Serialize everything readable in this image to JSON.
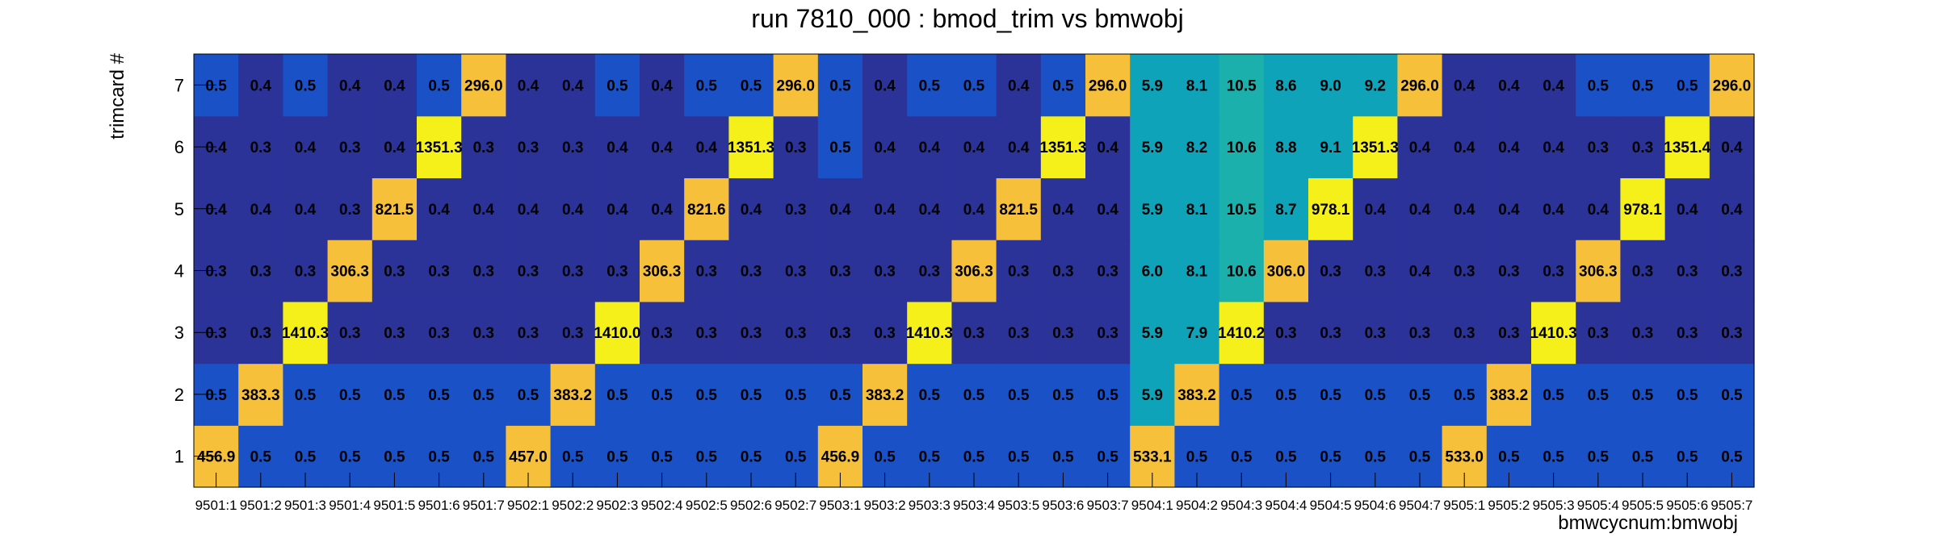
{
  "chart_data": {
    "type": "heatmap",
    "title": "run 7810_000 : bmod_trim vs bmwobj",
    "xlabel": "bmwcycnum:bmwobj",
    "ylabel": "trimcard #",
    "x_categories": [
      "9501:1",
      "9501:2",
      "9501:3",
      "9501:4",
      "9501:5",
      "9501:6",
      "9501:7",
      "9502:1",
      "9502:2",
      "9502:3",
      "9502:4",
      "9502:5",
      "9502:6",
      "9502:7",
      "9503:1",
      "9503:2",
      "9503:3",
      "9503:4",
      "9503:5",
      "9503:6",
      "9503:7",
      "9504:1",
      "9504:2",
      "9504:3",
      "9504:4",
      "9504:5",
      "9504:6",
      "9504:7",
      "9505:1",
      "9505:2",
      "9505:3",
      "9505:4",
      "9505:5",
      "9505:6",
      "9505:7"
    ],
    "y_categories": [
      "1",
      "2",
      "3",
      "4",
      "5",
      "6",
      "7"
    ],
    "grid": false,
    "values": [
      [
        "456.9",
        "0.5",
        "0.5",
        "0.5",
        "0.5",
        "0.5",
        "0.5",
        "457.0",
        "0.5",
        "0.5",
        "0.5",
        "0.5",
        "0.5",
        "0.5",
        "456.9",
        "0.5",
        "0.5",
        "0.5",
        "0.5",
        "0.5",
        "0.5",
        "533.1",
        "0.5",
        "0.5",
        "0.5",
        "0.5",
        "0.5",
        "0.5",
        "533.0",
        "0.5",
        "0.5",
        "0.5",
        "0.5",
        "0.5",
        "0.5"
      ],
      [
        "0.5",
        "383.3",
        "0.5",
        "0.5",
        "0.5",
        "0.5",
        "0.5",
        "0.5",
        "383.2",
        "0.5",
        "0.5",
        "0.5",
        "0.5",
        "0.5",
        "0.5",
        "383.2",
        "0.5",
        "0.5",
        "0.5",
        "0.5",
        "0.5",
        "5.9",
        "383.2",
        "0.5",
        "0.5",
        "0.5",
        "0.5",
        "0.5",
        "0.5",
        "383.2",
        "0.5",
        "0.5",
        "0.5",
        "0.5",
        "0.5"
      ],
      [
        "0.3",
        "0.3",
        "1410.3",
        "0.3",
        "0.3",
        "0.3",
        "0.3",
        "0.3",
        "0.3",
        "1410.0",
        "0.3",
        "0.3",
        "0.3",
        "0.3",
        "0.3",
        "0.3",
        "1410.3",
        "0.3",
        "0.3",
        "0.3",
        "0.3",
        "5.9",
        "7.9",
        "1410.2",
        "0.3",
        "0.3",
        "0.3",
        "0.3",
        "0.3",
        "0.3",
        "1410.3",
        "0.3",
        "0.3",
        "0.3",
        "0.3"
      ],
      [
        "0.3",
        "0.3",
        "0.3",
        "306.3",
        "0.3",
        "0.3",
        "0.3",
        "0.3",
        "0.3",
        "0.3",
        "306.3",
        "0.3",
        "0.3",
        "0.3",
        "0.3",
        "0.3",
        "0.3",
        "306.3",
        "0.3",
        "0.3",
        "0.3",
        "6.0",
        "8.1",
        "10.6",
        "306.0",
        "0.3",
        "0.3",
        "0.4",
        "0.3",
        "0.3",
        "0.3",
        "306.3",
        "0.3",
        "0.3",
        "0.3"
      ],
      [
        "0.4",
        "0.4",
        "0.4",
        "0.3",
        "821.5",
        "0.4",
        "0.4",
        "0.4",
        "0.4",
        "0.4",
        "0.4",
        "821.6",
        "0.4",
        "0.3",
        "0.4",
        "0.4",
        "0.4",
        "0.4",
        "821.5",
        "0.4",
        "0.4",
        "5.9",
        "8.1",
        "10.5",
        "8.7",
        "978.1",
        "0.4",
        "0.4",
        "0.4",
        "0.4",
        "0.4",
        "0.4",
        "978.1",
        "0.4",
        "0.4"
      ],
      [
        "0.4",
        "0.3",
        "0.4",
        "0.3",
        "0.4",
        "1351.3",
        "0.3",
        "0.3",
        "0.3",
        "0.4",
        "0.4",
        "0.4",
        "1351.3",
        "0.3",
        "0.5",
        "0.4",
        "0.4",
        "0.4",
        "0.4",
        "1351.3",
        "0.4",
        "5.9",
        "8.2",
        "10.6",
        "8.8",
        "9.1",
        "1351.3",
        "0.4",
        "0.4",
        "0.4",
        "0.4",
        "0.3",
        "0.3",
        "1351.4",
        "0.4"
      ],
      [
        "0.5",
        "0.4",
        "0.5",
        "0.4",
        "0.4",
        "0.5",
        "296.0",
        "0.4",
        "0.4",
        "0.5",
        "0.4",
        "0.5",
        "0.5",
        "296.0",
        "0.5",
        "0.4",
        "0.5",
        "0.5",
        "0.4",
        "0.5",
        "296.0",
        "5.9",
        "8.1",
        "10.5",
        "8.6",
        "9.0",
        "9.2",
        "296.0",
        "0.4",
        "0.4",
        "0.4",
        "0.5",
        "0.5",
        "0.5",
        "296.0"
      ]
    ],
    "palette": {
      "dark_blue": "#2b3399",
      "blue": "#1a51c7",
      "teal": "#0ea3b8",
      "teal_green": "#1cb0ac",
      "orange": "#f6c03b",
      "yellow": "#f5f01a"
    }
  }
}
